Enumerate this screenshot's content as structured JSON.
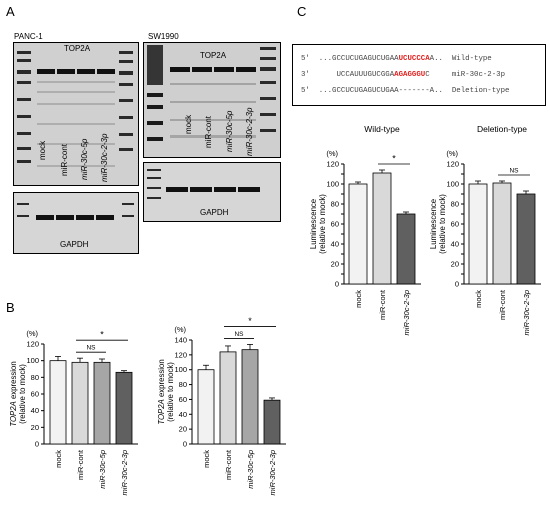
{
  "panels": {
    "a": "A",
    "b": "B",
    "c": "C"
  },
  "blot": {
    "panc1": {
      "cell_line": "PANC-1",
      "top_label": "TOP2A",
      "bottom_label": "GAPDH",
      "lanes": [
        "mock",
        "miR-cont",
        "miR-30c-5p",
        "miR-30c-2-3p"
      ]
    },
    "sw1990": {
      "cell_line": "SW1990",
      "top_label": "TOP2A",
      "bottom_label": "GAPDH",
      "lanes": [
        "mock",
        "miR-cont",
        "miR-30c-5p",
        "miR-30c-2-3p"
      ]
    }
  },
  "seq": {
    "rows": [
      {
        "prime": "5'",
        "pre": "...GCCUCUGAGUCUGAA",
        "hl": "UCUCCCA",
        "post": "A..",
        "label": "Wild-type"
      },
      {
        "prime": "3'",
        "pre": "    UCCAUUUGUCGGA",
        "hl": "AGAGGGU",
        "post": "C",
        "label": "miR-30c-2-3p"
      },
      {
        "prime": "5'",
        "pre": "...GCCUCUGAGUCUGAA",
        "hl": "",
        "post": "-------A..",
        "label": "Deletion-type"
      }
    ]
  },
  "colors": {
    "mock": "#f2f2f2",
    "cont": "#d9d9d9",
    "p5": "#a6a6a6",
    "p3": "#606060"
  },
  "chart_data": [
    {
      "type": "bar",
      "title": "",
      "ylabel": "TOP2A expression (relative to mock)",
      "yunit": "(%)",
      "ylim": [
        0,
        120
      ],
      "yticks": [
        0,
        20,
        40,
        60,
        80,
        100,
        120
      ],
      "categories": [
        "mock",
        "miR-cont",
        "miR-30c-5p",
        "miR-30c-2-3p"
      ],
      "values": [
        100,
        98,
        98,
        86
      ],
      "errors": [
        5,
        5,
        4,
        2
      ],
      "annotations": [
        {
          "from": 1,
          "to": 2,
          "text": "NS"
        },
        {
          "from": 1,
          "to": 3,
          "text": "*"
        }
      ]
    },
    {
      "type": "bar",
      "title": "",
      "ylabel": "TOP2A expression (relative to mock)",
      "yunit": "(%)",
      "ylim": [
        0,
        140
      ],
      "yticks": [
        0,
        20,
        40,
        60,
        80,
        100,
        120,
        140
      ],
      "categories": [
        "mock",
        "miR-cont",
        "miR-30c-5p",
        "miR-30c-2-3p"
      ],
      "values": [
        100,
        124,
        127,
        59
      ],
      "errors": [
        6,
        8,
        7,
        3
      ],
      "annotations": [
        {
          "from": 1,
          "to": 2,
          "text": "NS"
        },
        {
          "from": 1,
          "to": 3,
          "text": "*"
        }
      ]
    },
    {
      "type": "bar",
      "title": "Wild-type",
      "ylabel": "Luminescence (relative to mock)",
      "yunit": "(%)",
      "ylim": [
        0,
        120
      ],
      "yticks": [
        0,
        10,
        20,
        30,
        40,
        50,
        60,
        70,
        80,
        90,
        100,
        110,
        120
      ],
      "categories": [
        "mock",
        "miR-cont",
        "miR-30c-2-3p"
      ],
      "values": [
        100,
        111,
        70
      ],
      "errors": [
        2,
        3,
        2
      ],
      "annotations": [
        {
          "from": 1,
          "to": 2,
          "text": "*"
        }
      ]
    },
    {
      "type": "bar",
      "title": "Deletion-type",
      "ylabel": "Luminescence (relative to mock)",
      "yunit": "(%)",
      "ylim": [
        0,
        120
      ],
      "yticks": [
        0,
        10,
        20,
        30,
        40,
        50,
        60,
        70,
        80,
        90,
        100,
        110,
        120
      ],
      "categories": [
        "mock",
        "miR-cont",
        "miR-30c-2-3p"
      ],
      "values": [
        100,
        101,
        90
      ],
      "errors": [
        3,
        2,
        3
      ],
      "annotations": [
        {
          "from": 1,
          "to": 2,
          "text": "NS"
        }
      ]
    }
  ]
}
